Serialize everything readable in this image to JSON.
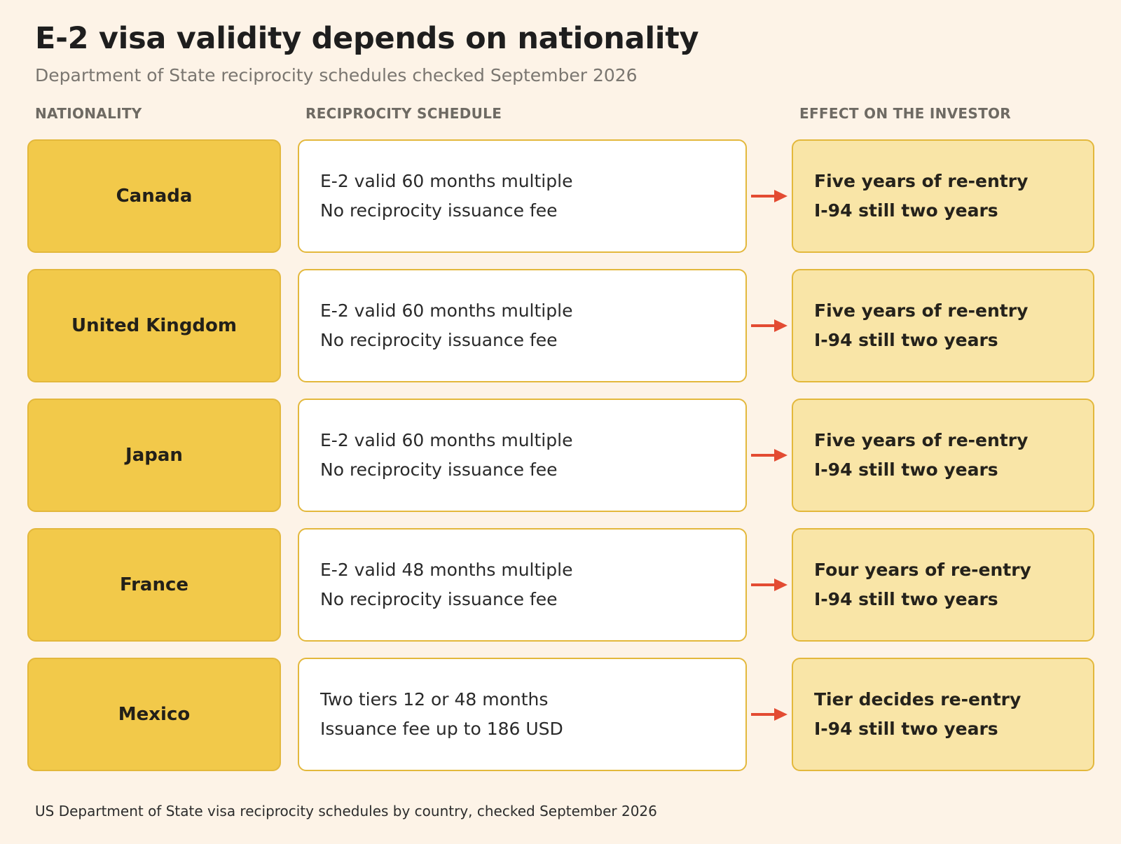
{
  "title": "E-2 visa validity depends on nationality",
  "subtitle": "Department of State reciprocity schedules checked September 2026",
  "headers": {
    "nationality": "NATIONALITY",
    "schedule": "RECIPROCITY SCHEDULE",
    "effect": "EFFECT ON THE INVESTOR"
  },
  "rows": [
    {
      "nationality": "Canada",
      "schedule_line1": "E-2 valid 60 months multiple",
      "schedule_line2": "No reciprocity issuance fee",
      "effect_line1": "Five years of re-entry",
      "effect_line2": "I-94 still two years"
    },
    {
      "nationality": "United Kingdom",
      "schedule_line1": "E-2 valid 60 months multiple",
      "schedule_line2": "No reciprocity issuance fee",
      "effect_line1": "Five years of re-entry",
      "effect_line2": "I-94 still two years"
    },
    {
      "nationality": "Japan",
      "schedule_line1": "E-2 valid 60 months multiple",
      "schedule_line2": "No reciprocity issuance fee",
      "effect_line1": "Five years of re-entry",
      "effect_line2": "I-94 still two years"
    },
    {
      "nationality": "France",
      "schedule_line1": "E-2 valid 48 months multiple",
      "schedule_line2": "No reciprocity issuance fee",
      "effect_line1": "Four years of re-entry",
      "effect_line2": "I-94 still two years"
    },
    {
      "nationality": "Mexico",
      "schedule_line1": "Two tiers 12 or 48 months",
      "schedule_line2": "Issuance fee up to 186 USD",
      "effect_line1": "Tier decides re-entry",
      "effect_line2": "I-94 still two years"
    }
  ],
  "footnote": "US Department of State visa reciprocity schedules by country, checked September 2026",
  "colors": {
    "background": "#fdf3e7",
    "nationality_fill": "#f2c94a",
    "effect_fill": "#f9e5a7",
    "border": "#e3b83c",
    "arrow": "#e34b32"
  }
}
